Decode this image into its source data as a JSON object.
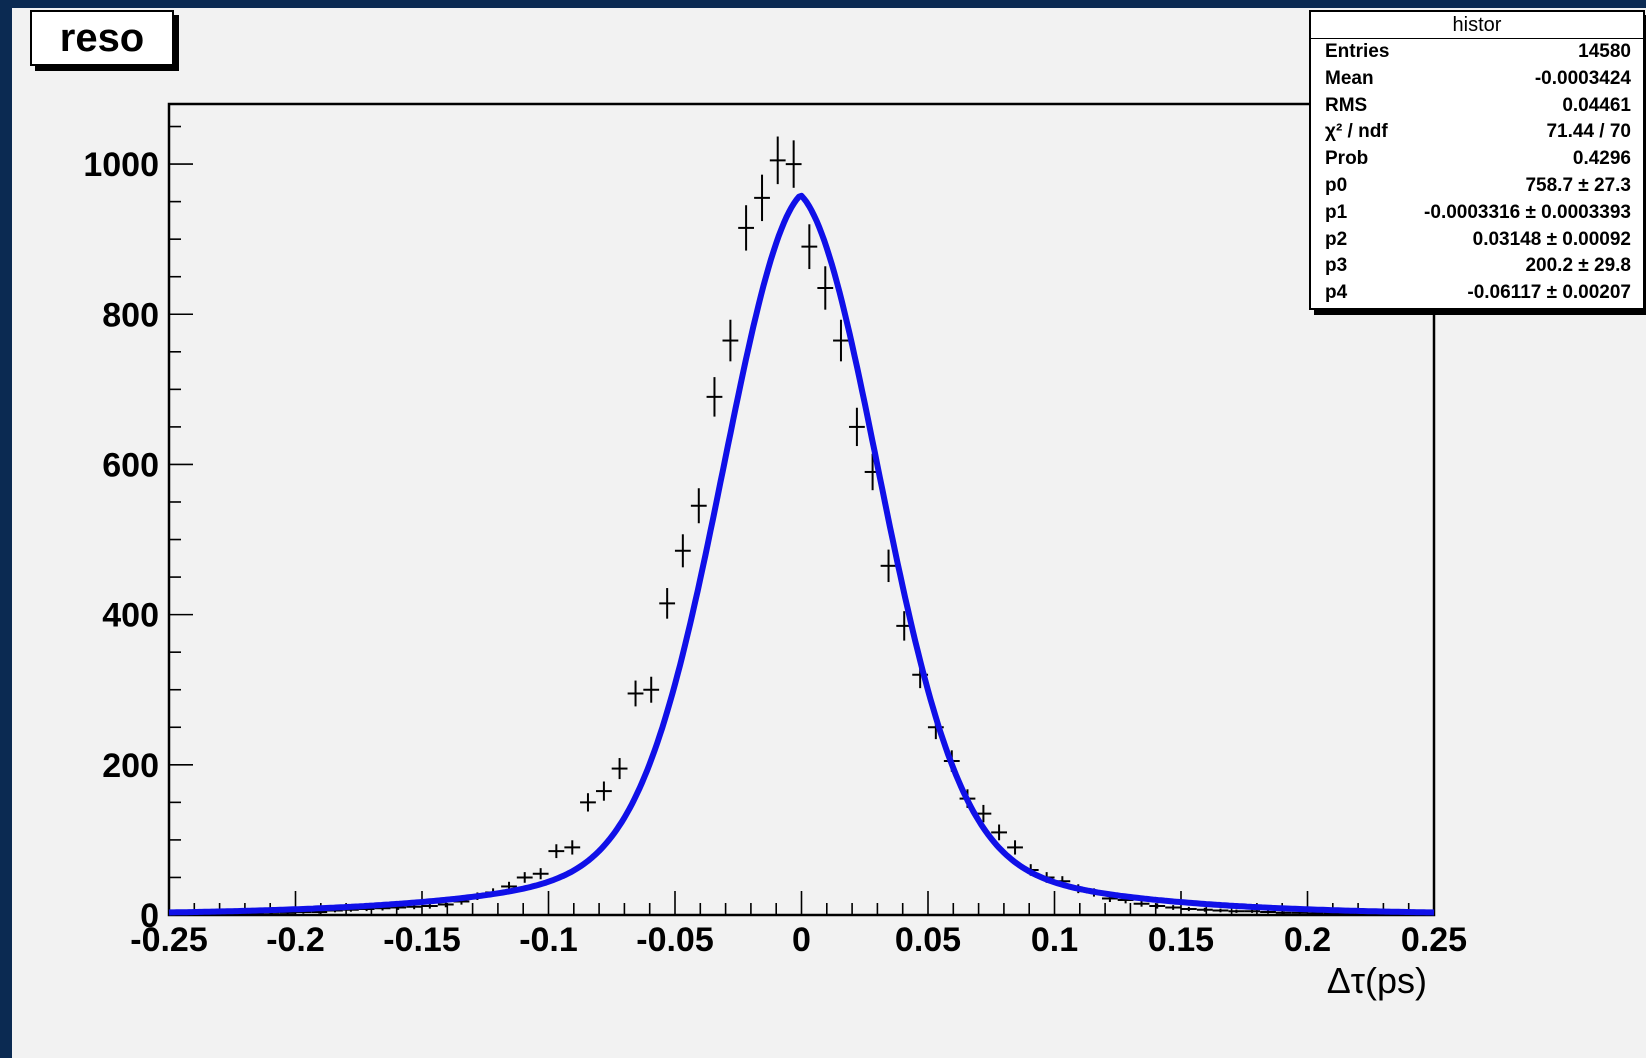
{
  "title": "reso",
  "stats": {
    "name": "histor",
    "rows": [
      {
        "label": "Entries",
        "value": "14580"
      },
      {
        "label": "Mean",
        "value": "-0.0003424"
      },
      {
        "label": "RMS",
        "value": "0.04461"
      },
      {
        "label": "χ² / ndf",
        "value": "71.44 / 70"
      },
      {
        "label": "Prob",
        "value": "0.4296"
      },
      {
        "label": "p0",
        "value": "758.7 ± 27.3"
      },
      {
        "label": "p1",
        "value": "-0.0003316 ± 0.0003393"
      },
      {
        "label": "p2",
        "value": "0.03148 ± 0.00092"
      },
      {
        "label": "p3",
        "value": "200.2 ± 29.8"
      },
      {
        "label": "p4",
        "value": "-0.06117 ± 0.00207"
      }
    ]
  },
  "chart_data": {
    "type": "scatter",
    "xlabel": "Δτ(ps)",
    "ylabel": "",
    "xlim": [
      -0.25,
      0.25
    ],
    "ylim": [
      0,
      1080
    ],
    "x_ticks": [
      "-0.25",
      "-0.2",
      "-0.15",
      "-0.1",
      "-0.05",
      "0",
      "0.05",
      "0.1",
      "0.15",
      "0.2",
      "0.25"
    ],
    "y_ticks": [
      "0",
      "200",
      "400",
      "600",
      "800",
      "1000"
    ],
    "bin_half_width": 0.003125,
    "points": {
      "x": [
        -0.2469,
        -0.2406,
        -0.2344,
        -0.2281,
        -0.2219,
        -0.2156,
        -0.2094,
        -0.2031,
        -0.1969,
        -0.1906,
        -0.1844,
        -0.1781,
        -0.1719,
        -0.1656,
        -0.1594,
        -0.1531,
        -0.1469,
        -0.1406,
        -0.1344,
        -0.1281,
        -0.1219,
        -0.1156,
        -0.1094,
        -0.1031,
        -0.0969,
        -0.0906,
        -0.0844,
        -0.0781,
        -0.0719,
        -0.0656,
        -0.0594,
        -0.0531,
        -0.0469,
        -0.0406,
        -0.0344,
        -0.0281,
        -0.0219,
        -0.0156,
        -0.0094,
        -0.0031,
        0.0031,
        0.0094,
        0.0156,
        0.0219,
        0.0281,
        0.0344,
        0.0406,
        0.0469,
        0.0531,
        0.0594,
        0.0656,
        0.0719,
        0.0781,
        0.0844,
        0.0906,
        0.0969,
        0.1031,
        0.1094,
        0.1156,
        0.1219,
        0.1281,
        0.1344,
        0.1406,
        0.1469,
        0.1531,
        0.1594,
        0.1656,
        0.1719,
        0.1781,
        0.1844,
        0.1906,
        0.1969,
        0.2031,
        0.2094,
        0.2156,
        0.2219,
        0.2281,
        0.2344,
        0.2406,
        0.2469
      ],
      "y": [
        1,
        1,
        1,
        2,
        2,
        2,
        3,
        3,
        4,
        4,
        6,
        7,
        8,
        9,
        10,
        11,
        12,
        14,
        18,
        25,
        30,
        38,
        50,
        55,
        85,
        90,
        150,
        165,
        195,
        295,
        300,
        415,
        485,
        545,
        690,
        765,
        915,
        955,
        1005,
        1000,
        890,
        835,
        765,
        650,
        590,
        465,
        385,
        320,
        250,
        205,
        155,
        135,
        110,
        90,
        60,
        50,
        45,
        35,
        30,
        22,
        20,
        15,
        12,
        10,
        8,
        7,
        6,
        5,
        5,
        4,
        3,
        3,
        2,
        2,
        2,
        2,
        1,
        1,
        1,
        1
      ],
      "err": [
        1,
        1,
        1,
        1.4,
        1.4,
        1.4,
        1.7,
        1.7,
        2,
        2,
        2.4,
        2.6,
        2.8,
        3,
        3.2,
        3.3,
        3.5,
        3.7,
        4.2,
        5,
        5.5,
        6.2,
        7.1,
        7.4,
        9.2,
        9.5,
        12.2,
        12.8,
        14,
        17.2,
        17.3,
        20.4,
        22,
        23.3,
        26.3,
        27.7,
        30.2,
        30.9,
        31.7,
        31.6,
        29.8,
        28.9,
        27.7,
        25.5,
        24.3,
        21.6,
        19.6,
        17.9,
        15.8,
        14.3,
        12.4,
        11.6,
        10.5,
        9.5,
        7.7,
        7.1,
        6.7,
        5.9,
        5.5,
        4.7,
        4.5,
        3.9,
        3.5,
        3.2,
        2.8,
        2.6,
        2.4,
        2.2,
        2.2,
        2,
        1.7,
        1.7,
        1.4,
        1.4,
        1.4,
        1.4,
        1,
        1,
        1,
        1
      ]
    },
    "fit": {
      "name": "gaussian plus exponential tails",
      "params": {
        "p0": 758.7,
        "p1": -0.0003316,
        "p2": 0.03148,
        "p3": 200.2,
        "p4": -0.06117
      }
    },
    "colors": {
      "fit": "#1010e8",
      "points": "#000000",
      "frame": "#000000"
    },
    "grid": false
  }
}
